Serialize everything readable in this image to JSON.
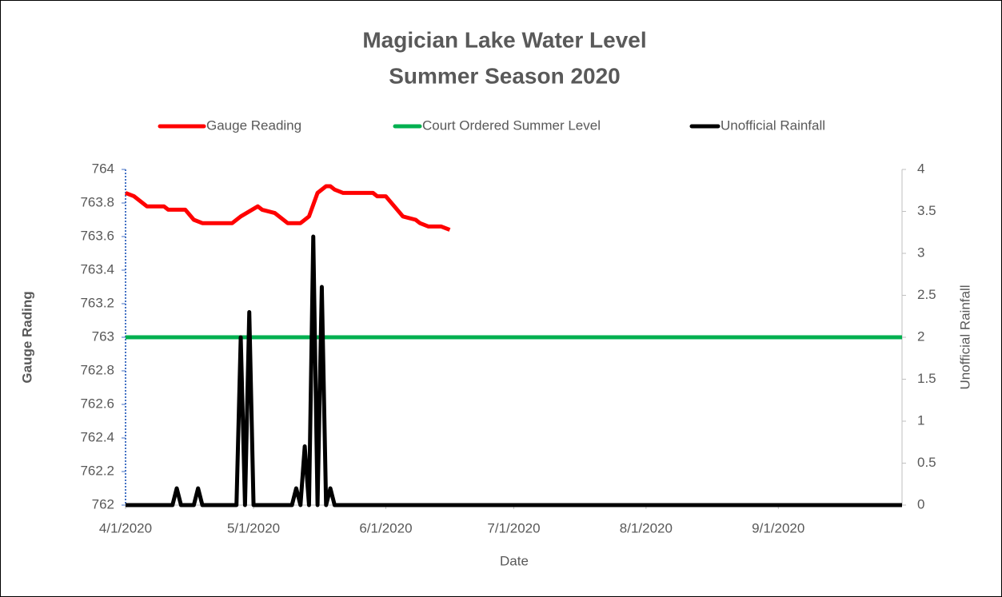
{
  "chart_data": {
    "type": "line",
    "title": "Magician Lake Water Level",
    "subtitle": "Summer Season 2020",
    "xlabel": "Date",
    "ylabel": "Gauge Rading",
    "y2label": "Unofficial Rainfall",
    "xlim": [
      "4/1/2020",
      "9/30/2020"
    ],
    "xticks": [
      "4/1/2020",
      "5/1/2020",
      "6/1/2020",
      "7/1/2020",
      "8/1/2020",
      "9/1/2020"
    ],
    "ylim": [
      762,
      764
    ],
    "yticks": [
      762,
      762.2,
      762.4,
      762.6,
      762.8,
      763,
      763.2,
      763.4,
      763.6,
      763.8,
      764
    ],
    "y2lim": [
      0,
      4
    ],
    "y2ticks": [
      0,
      0.5,
      1,
      1.5,
      2,
      2.5,
      3,
      3.5,
      4
    ],
    "legend": "top",
    "series": [
      {
        "name": "Gauge Reading",
        "color": "#ff0000",
        "x": [
          "4/1/2020",
          "4/3/2020",
          "4/6/2020",
          "4/10/2020",
          "4/11/2020",
          "4/15/2020",
          "4/17/2020",
          "4/19/2020",
          "4/26/2020",
          "4/28/2020",
          "5/2/2020",
          "5/3/2020",
          "5/6/2020",
          "5/9/2020",
          "5/12/2020",
          "5/14/2020",
          "5/16/2020",
          "5/18/2020",
          "5/19/2020",
          "5/20/2020",
          "5/22/2020",
          "5/29/2020",
          "5/30/2020",
          "6/1/2020",
          "6/5/2020",
          "6/8/2020",
          "6/9/2020",
          "6/11/2020",
          "6/14/2020",
          "6/16/2020"
        ],
        "values": [
          763.86,
          763.84,
          763.78,
          763.78,
          763.76,
          763.76,
          763.7,
          763.68,
          763.68,
          763.72,
          763.78,
          763.76,
          763.74,
          763.68,
          763.68,
          763.72,
          763.86,
          763.9,
          763.9,
          763.88,
          763.86,
          763.86,
          763.84,
          763.84,
          763.72,
          763.7,
          763.68,
          763.66,
          763.66,
          763.64
        ]
      },
      {
        "name": "Court Ordered Summer Level",
        "color": "#00b050",
        "x": [
          "4/1/2020",
          "9/30/2020"
        ],
        "values": [
          763,
          763
        ]
      },
      {
        "name": "Unofficial Rainfall",
        "color": "#000000",
        "axis": "y2",
        "x": [
          "4/1/2020",
          "4/12/2020",
          "4/13/2020",
          "4/14/2020",
          "4/17/2020",
          "4/18/2020",
          "4/19/2020",
          "4/27/2020",
          "4/28/2020",
          "4/29/2020",
          "4/30/2020",
          "5/1/2020",
          "5/10/2020",
          "5/11/2020",
          "5/12/2020",
          "5/13/2020",
          "5/14/2020",
          "5/15/2020",
          "5/16/2020",
          "5/17/2020",
          "5/18/2020",
          "5/19/2020",
          "5/20/2020",
          "9/30/2020"
        ],
        "values": [
          0,
          0,
          0.2,
          0,
          0,
          0.2,
          0,
          0,
          2.0,
          0,
          2.3,
          0,
          0,
          0.2,
          0,
          0.7,
          0,
          3.2,
          0,
          2.6,
          0,
          0.2,
          0,
          0
        ]
      }
    ]
  }
}
